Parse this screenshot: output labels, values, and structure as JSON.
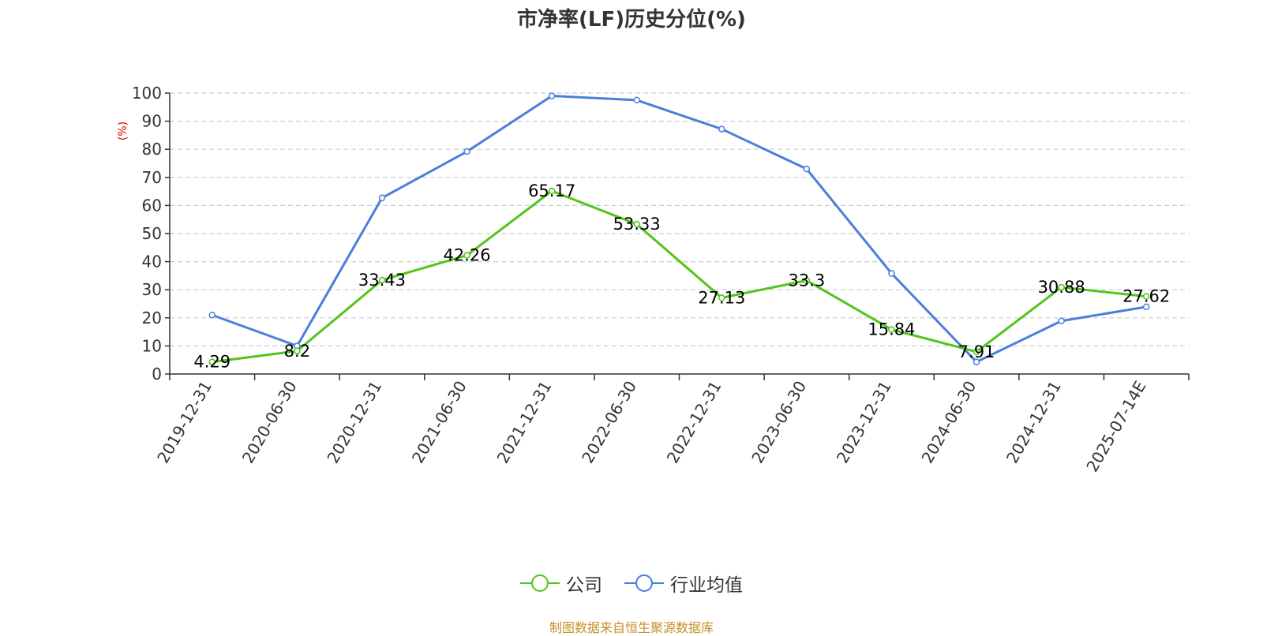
{
  "chart_data": {
    "type": "line",
    "title": "市净率(LF)历史分位(%)",
    "ylabel": "(%)",
    "ylim": [
      0,
      100
    ],
    "yticks": [
      "0",
      "10",
      "20",
      "30",
      "40",
      "50",
      "60",
      "70",
      "80",
      "90",
      "100"
    ],
    "categories": [
      "2019-12-31",
      "2020-06-30",
      "2020-12-31",
      "2021-06-30",
      "2021-12-31",
      "2022-06-30",
      "2022-12-31",
      "2023-06-30",
      "2023-12-31",
      "2024-06-30",
      "2024-12-31",
      "2025-07-14E"
    ],
    "series": [
      {
        "name": "公司",
        "color": "#52c41a",
        "values": [
          4.29,
          8.2,
          33.43,
          42.26,
          65.17,
          53.33,
          27.13,
          33.3,
          15.84,
          7.91,
          30.88,
          27.62
        ],
        "labels": [
          "4.29",
          "8.2",
          "33.43",
          "42.26",
          "65.17",
          "53.33",
          "27.13",
          "33.3",
          "15.84",
          "7.91",
          "30.88",
          "27.62"
        ]
      },
      {
        "name": "行业均值",
        "color": "#4a7fdb",
        "values": [
          21,
          10,
          62.7,
          79.2,
          99,
          97.5,
          87.2,
          73,
          35.8,
          4.3,
          18.9,
          23.9
        ]
      }
    ],
    "grid": true,
    "legend_position": "bottom"
  },
  "colors": {
    "ylabel": "#e00000",
    "source": "#c8902a"
  },
  "source_text": "制图数据来自恒生聚源数据库"
}
